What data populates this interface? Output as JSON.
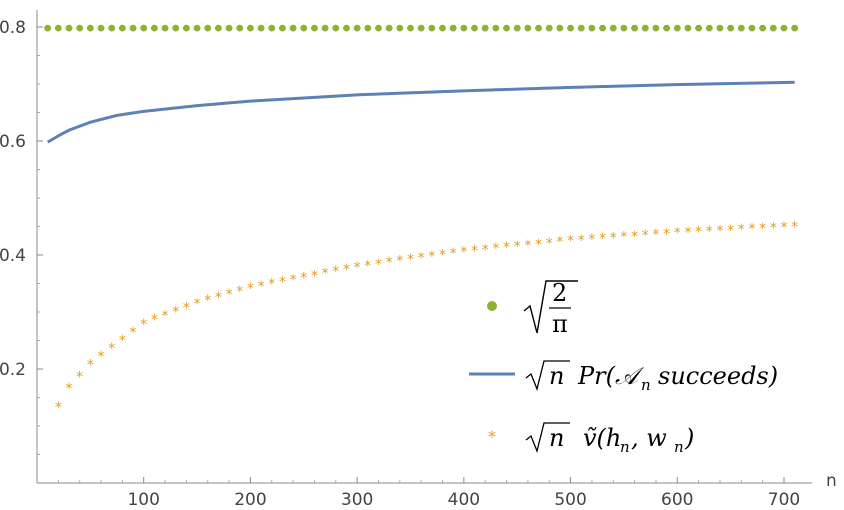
{
  "chart_data": {
    "type": "scatter",
    "title": "",
    "xlabel": "n",
    "ylabel": "",
    "xlim": [
      0,
      715
    ],
    "ylim": [
      0,
      0.835
    ],
    "x_ticks": [
      100,
      200,
      300,
      400,
      500,
      600,
      700
    ],
    "x_tick_labels": [
      "100",
      "200",
      "300",
      "400",
      "500",
      "600",
      "700"
    ],
    "y_ticks": [
      0.2,
      0.4,
      0.6,
      0.8
    ],
    "y_tick_labels": [
      "0.2",
      "0.4",
      "0.6",
      "0.8"
    ],
    "legend_position": "bottom-right",
    "series": [
      {
        "name": "√(2/π)",
        "style": "dots",
        "color": "#8fb032",
        "x_start": 10,
        "x_step": 10,
        "x_end": 710,
        "constant": 0.798
      },
      {
        "name": "√n Pr(𝒜n succeeds)",
        "style": "line",
        "color": "#5e81b5",
        "x": [
          10,
          20,
          30,
          50,
          75,
          100,
          150,
          200,
          300,
          400,
          500,
          600,
          710
        ],
        "y": [
          0.598,
          0.609,
          0.619,
          0.633,
          0.645,
          0.652,
          0.662,
          0.67,
          0.681,
          0.688,
          0.694,
          0.699,
          0.703
        ]
      },
      {
        "name": "√n ṽ(hn, wn)",
        "style": "stars",
        "color": "#e19c24",
        "x_start": 20,
        "x_step": 10,
        "x_end": 710,
        "x": [
          20,
          30,
          50,
          100,
          150,
          200,
          300,
          400,
          500,
          600,
          710
        ],
        "y": [
          0.135,
          0.168,
          0.21,
          0.281,
          0.317,
          0.344,
          0.381,
          0.408,
          0.427,
          0.441,
          0.452
        ]
      }
    ]
  }
}
